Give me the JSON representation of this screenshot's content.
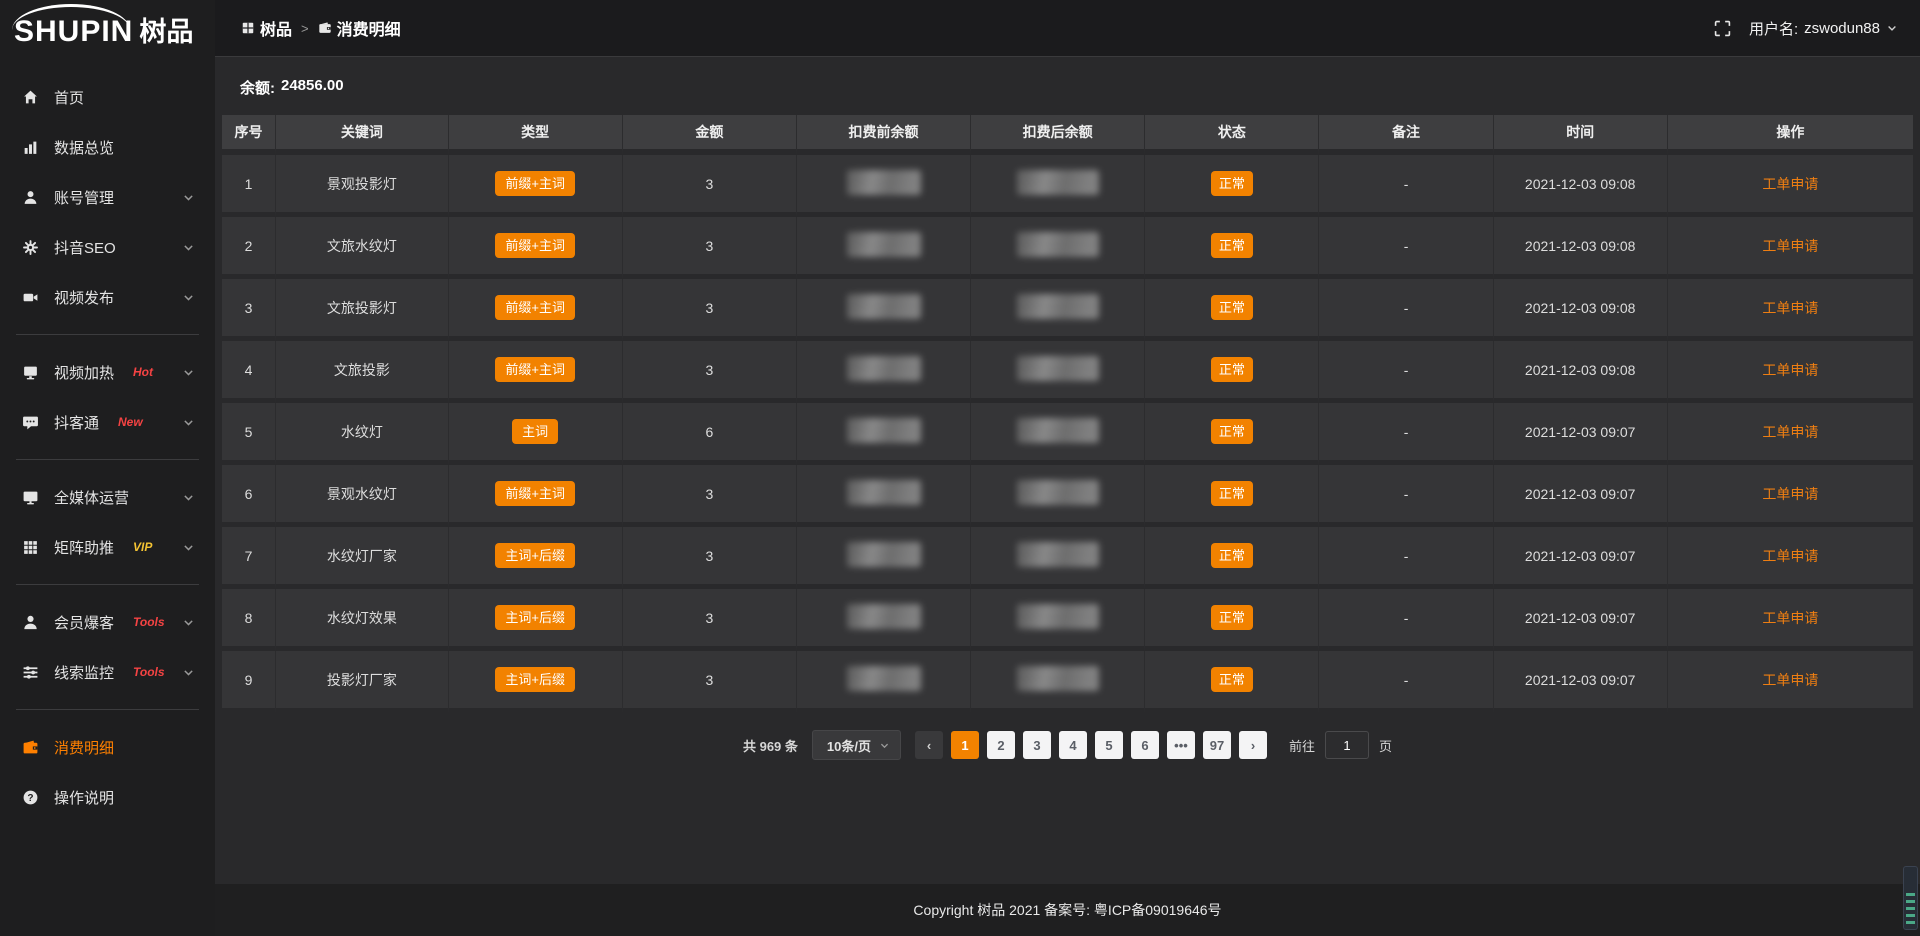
{
  "logo": {
    "text_en": "SHUPIN",
    "text_cn": "树品"
  },
  "header": {
    "breadcrumb": [
      {
        "icon": "apps",
        "label": "树品"
      },
      {
        "icon": "wallet",
        "label": "消费明细"
      }
    ],
    "separator": ">",
    "username_label": "用户名:",
    "username": "zswodun88"
  },
  "sidebar": {
    "items": [
      {
        "icon": "home",
        "label": "首页"
      },
      {
        "icon": "chart",
        "label": "数据总览"
      },
      {
        "icon": "user",
        "label": "账号管理",
        "expandable": true
      },
      {
        "icon": "gear",
        "label": "抖音SEO",
        "expandable": true
      },
      {
        "icon": "video",
        "label": "视频发布",
        "expandable": true
      },
      {
        "divider": true
      },
      {
        "icon": "screen",
        "label": "视频加热",
        "badge": "Hot",
        "badge_class": "red",
        "expandable": true
      },
      {
        "icon": "chat",
        "label": "抖客通",
        "badge": "New",
        "badge_class": "red",
        "expandable": true
      },
      {
        "divider": true
      },
      {
        "icon": "monitor",
        "label": "全媒体运营",
        "expandable": true
      },
      {
        "icon": "grid",
        "label": "矩阵助推",
        "badge": "VIP",
        "badge_class": "gold",
        "expandable": true
      },
      {
        "divider": true
      },
      {
        "icon": "member",
        "label": "会员爆客",
        "badge": "Tools",
        "badge_class": "red",
        "expandable": true
      },
      {
        "icon": "sliders",
        "label": "线索监控",
        "badge": "Tools",
        "badge_class": "red",
        "expandable": true
      },
      {
        "divider": true
      },
      {
        "icon": "wallet",
        "label": "消费明细",
        "active": true
      },
      {
        "icon": "question",
        "label": "操作说明"
      }
    ]
  },
  "balance": {
    "label": "余额:",
    "value": "24856.00"
  },
  "table": {
    "columns": [
      "序号",
      "关键词",
      "类型",
      "金额",
      "扣费前余额",
      "扣费后余额",
      "状态",
      "备注",
      "时间",
      "操作"
    ],
    "rows": [
      {
        "num": "1",
        "keyword": "景观投影灯",
        "type": "前缀+主词",
        "amount": "3",
        "status": "正常",
        "remark": "-",
        "time": "2021-12-03 09:08",
        "action": "工单申请"
      },
      {
        "num": "2",
        "keyword": "文旅水纹灯",
        "type": "前缀+主词",
        "amount": "3",
        "status": "正常",
        "remark": "-",
        "time": "2021-12-03 09:08",
        "action": "工单申请"
      },
      {
        "num": "3",
        "keyword": "文旅投影灯",
        "type": "前缀+主词",
        "amount": "3",
        "status": "正常",
        "remark": "-",
        "time": "2021-12-03 09:08",
        "action": "工单申请"
      },
      {
        "num": "4",
        "keyword": "文旅投影",
        "type": "前缀+主词",
        "amount": "3",
        "status": "正常",
        "remark": "-",
        "time": "2021-12-03 09:08",
        "action": "工单申请"
      },
      {
        "num": "5",
        "keyword": "水纹灯",
        "type": "主词",
        "amount": "6",
        "status": "正常",
        "remark": "-",
        "time": "2021-12-03 09:07",
        "action": "工单申请"
      },
      {
        "num": "6",
        "keyword": "景观水纹灯",
        "type": "前缀+主词",
        "amount": "3",
        "status": "正常",
        "remark": "-",
        "time": "2021-12-03 09:07",
        "action": "工单申请"
      },
      {
        "num": "7",
        "keyword": "水纹灯厂家",
        "type": "主词+后缀",
        "amount": "3",
        "status": "正常",
        "remark": "-",
        "time": "2021-12-03 09:07",
        "action": "工单申请"
      },
      {
        "num": "8",
        "keyword": "水纹灯效果",
        "type": "主词+后缀",
        "amount": "3",
        "status": "正常",
        "remark": "-",
        "time": "2021-12-03 09:07",
        "action": "工单申请"
      },
      {
        "num": "9",
        "keyword": "投影灯厂家",
        "type": "主词+后缀",
        "amount": "3",
        "status": "正常",
        "remark": "-",
        "time": "2021-12-03 09:07",
        "action": "工单申请"
      }
    ]
  },
  "pagination": {
    "total_label": "共 969 条",
    "page_size": "10条/页",
    "buttons": [
      {
        "label": "‹",
        "class": "dark",
        "name": "prev"
      },
      {
        "label": "1",
        "class": "active"
      },
      {
        "label": "2"
      },
      {
        "label": "3"
      },
      {
        "label": "4"
      },
      {
        "label": "5"
      },
      {
        "label": "6"
      },
      {
        "label": "•••"
      },
      {
        "label": "97"
      },
      {
        "label": "›",
        "name": "next"
      }
    ],
    "goto_label": "前往",
    "goto_value": "1",
    "goto_unit": "页"
  },
  "footer": {
    "copyright": "Copyright 树品 2021 备案号: 粤ICP备09019646号"
  },
  "colors": {
    "accent_orange": "#f28200",
    "link_orange": "#ee7e12",
    "badge_red": "#f54343",
    "badge_gold": "#f5c433"
  }
}
